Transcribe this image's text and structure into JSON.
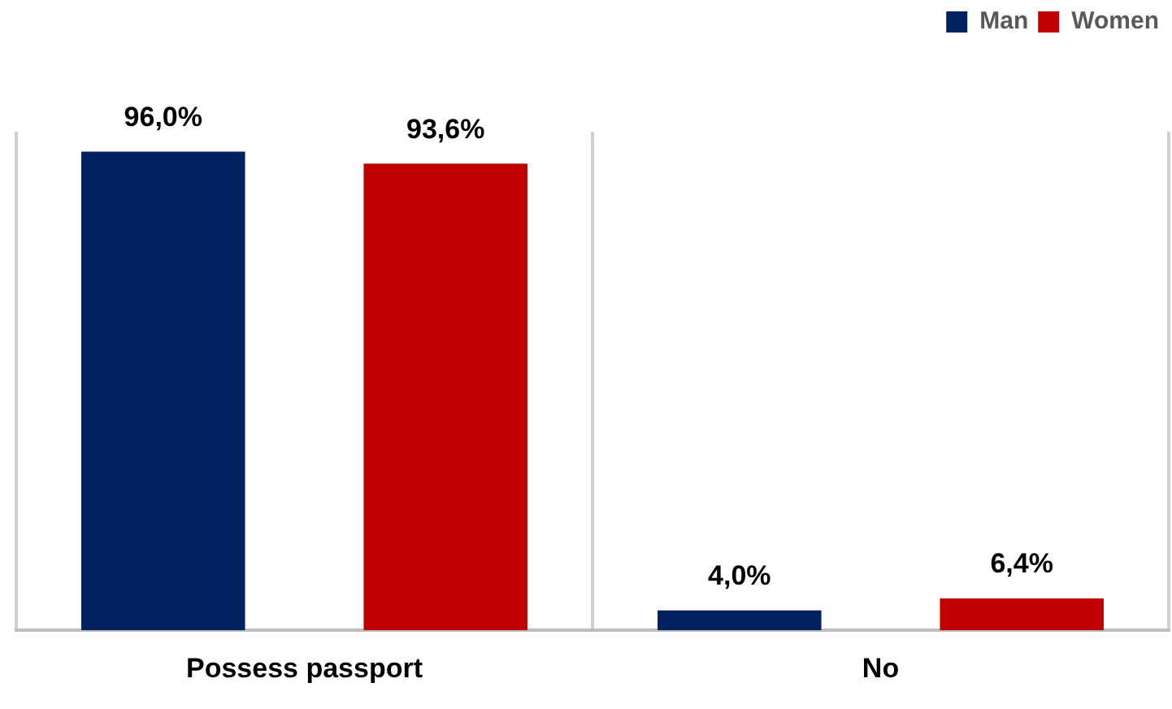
{
  "chart_data": {
    "type": "bar",
    "categories": [
      "Possess passport",
      "No"
    ],
    "series": [
      {
        "name": "Man",
        "color": "#002060",
        "values": [
          96.0,
          4.0
        ],
        "value_labels": [
          "96,0%",
          "4,0%"
        ]
      },
      {
        "name": "Women",
        "color": "#c00000",
        "values": [
          93.6,
          6.4
        ],
        "value_labels": [
          "93,6%",
          "6,4%"
        ]
      }
    ],
    "legend": "top right",
    "grid": "x"
  }
}
